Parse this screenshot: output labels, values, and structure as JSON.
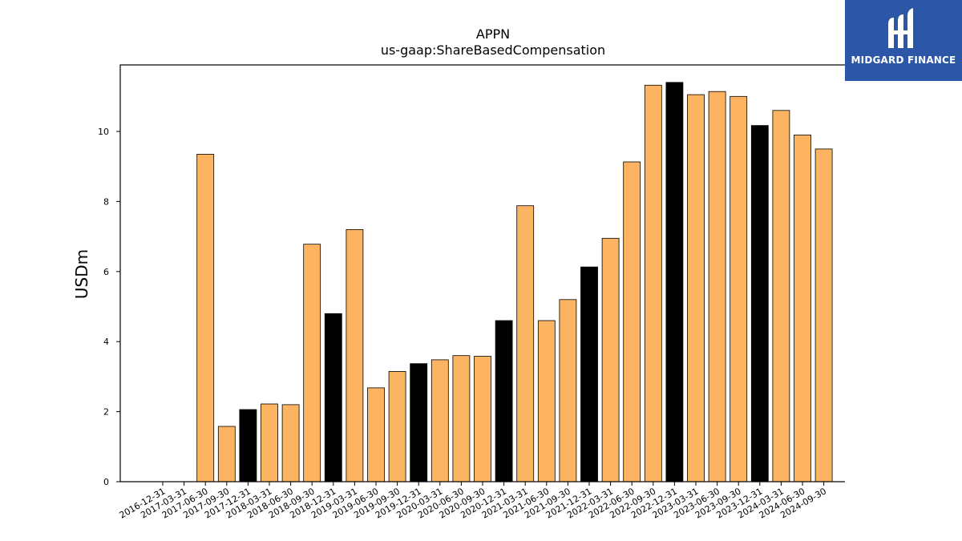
{
  "chart_data": {
    "type": "bar",
    "title": "APPN",
    "subtitle": "us-gaap:ShareBasedCompensation",
    "xlabel": "",
    "ylabel": "USDm",
    "ylim": [
      0,
      11.9
    ],
    "yticks": [
      0,
      2,
      4,
      6,
      8,
      10
    ],
    "grid": false,
    "categories": [
      "2016-12-31",
      "2017-03-31",
      "2017-06-30",
      "2017-09-30",
      "2017-12-31",
      "2018-03-31",
      "2018-06-30",
      "2018-09-30",
      "2018-12-31",
      "2019-03-31",
      "2019-06-30",
      "2019-09-30",
      "2019-12-31",
      "2020-03-31",
      "2020-06-30",
      "2020-09-30",
      "2020-12-31",
      "2021-03-31",
      "2021-06-30",
      "2021-09-30",
      "2021-12-31",
      "2022-03-31",
      "2022-06-30",
      "2022-09-30",
      "2022-12-31",
      "2023-03-31",
      "2023-06-30",
      "2023-09-30",
      "2023-12-31",
      "2024-03-31",
      "2024-06-30",
      "2024-09-30"
    ],
    "values": [
      null,
      null,
      9.35,
      1.58,
      2.06,
      2.22,
      2.2,
      6.78,
      4.8,
      7.2,
      2.68,
      3.15,
      3.37,
      3.48,
      3.6,
      3.58,
      4.6,
      7.88,
      4.6,
      5.2,
      6.13,
      6.95,
      9.13,
      11.32,
      11.4,
      11.05,
      11.14,
      11.0,
      10.17,
      10.6,
      9.9,
      9.5
    ],
    "highlight_colors": {
      "quarter": "#fdb462",
      "year_end": "#000000"
    },
    "bar_types": [
      "",
      "",
      "quarter",
      "quarter",
      "year_end",
      "quarter",
      "quarter",
      "quarter",
      "year_end",
      "quarter",
      "quarter",
      "quarter",
      "year_end",
      "quarter",
      "quarter",
      "quarter",
      "year_end",
      "quarter",
      "quarter",
      "quarter",
      "year_end",
      "quarter",
      "quarter",
      "quarter",
      "year_end",
      "quarter",
      "quarter",
      "quarter",
      "year_end",
      "quarter",
      "quarter",
      "quarter"
    ]
  },
  "logo": {
    "text": "MIDGARD FINANCE",
    "color": "#2b57a6"
  }
}
